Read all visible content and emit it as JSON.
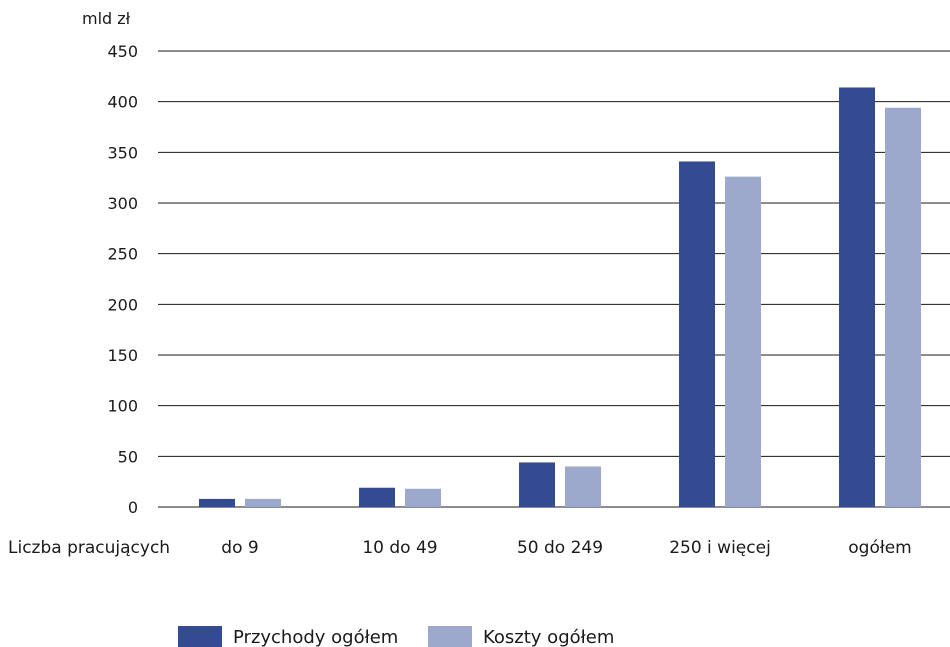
{
  "chart_data": {
    "type": "bar",
    "y_unit": "mld zł",
    "x_axis_label": "Liczba pracujących",
    "categories": [
      "do 9",
      "10 do 49",
      "50 do 249",
      "250 i więcej",
      "ogółem"
    ],
    "series": [
      {
        "name": "Przychody ogółem",
        "color": "#324b93",
        "values": [
          8,
          19,
          44,
          341,
          414
        ]
      },
      {
        "name": "Koszty ogółem",
        "color": "#9ca9cd",
        "values": [
          8,
          18,
          40,
          326,
          394
        ]
      }
    ],
    "ylim": [
      0,
      450
    ],
    "y_ticks": [
      0,
      50,
      100,
      150,
      200,
      250,
      300,
      350,
      400,
      450
    ],
    "grid": true,
    "legend_position": "bottom"
  }
}
